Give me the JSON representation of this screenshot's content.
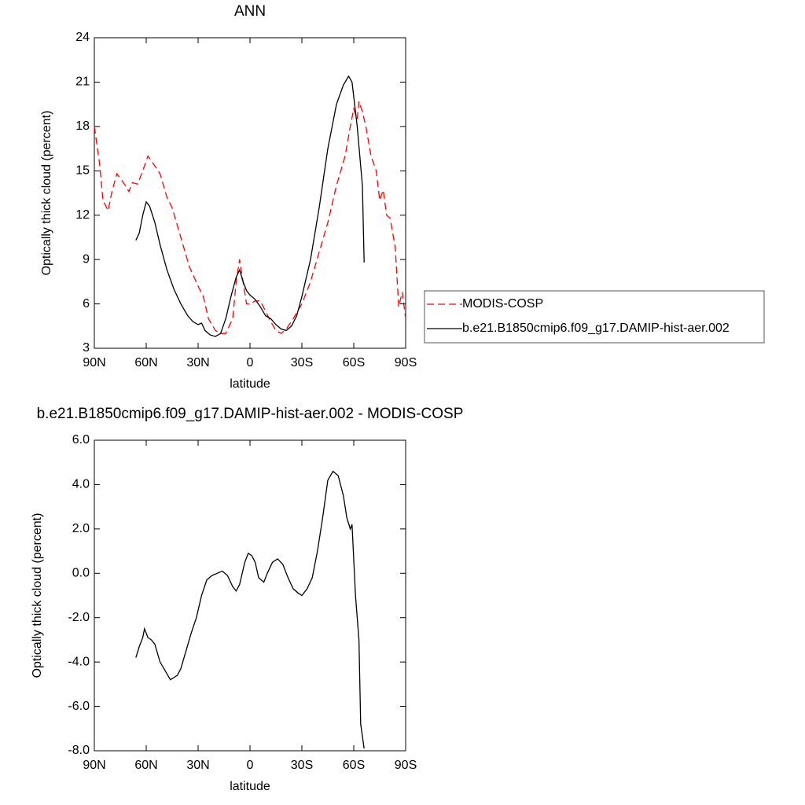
{
  "chart_data": [
    {
      "type": "line",
      "title": "ANN",
      "xlabel": "latitude",
      "ylabel": "Optically thick cloud (percent)",
      "xlim": [
        90,
        -90
      ],
      "ylim": [
        3,
        24
      ],
      "xticks": [
        {
          "value": 90,
          "label": "90N"
        },
        {
          "value": 60,
          "label": "60N"
        },
        {
          "value": 30,
          "label": "30N"
        },
        0,
        {
          "value": -30,
          "label": "30S"
        },
        {
          "value": -60,
          "label": "60S"
        },
        {
          "value": -90,
          "label": "90S"
        }
      ],
      "yticks": [
        3,
        6,
        9,
        12,
        15,
        18,
        21,
        24
      ],
      "legend": "outside-right",
      "series": [
        {
          "name": "MODIS-COSP",
          "color": "#ff0000",
          "line_style": "dashed",
          "x": [
            90,
            87,
            85,
            82,
            80,
            77,
            75,
            72,
            70,
            68,
            65,
            62,
            59,
            56,
            52,
            48,
            45,
            40,
            35,
            30,
            27,
            24,
            20,
            17,
            14,
            10,
            8,
            6,
            4,
            2,
            0,
            -3,
            -6,
            -9,
            -12,
            -15,
            -18,
            -21,
            -25,
            -30,
            -35,
            -40,
            -45,
            -50,
            -55,
            -58,
            -60,
            -62,
            -63,
            -65,
            -67,
            -70,
            -73,
            -75,
            -77,
            -79,
            -81,
            -84,
            -86,
            -88,
            -90
          ],
          "values": [
            18.0,
            15.5,
            13.0,
            12.3,
            13.5,
            14.8,
            14.5,
            14.0,
            13.6,
            14.2,
            14.1,
            15.0,
            16.0,
            15.5,
            14.8,
            13.2,
            12.5,
            10.5,
            8.5,
            7.2,
            6.5,
            5.0,
            4.2,
            4.0,
            4.0,
            5.0,
            7.5,
            9.0,
            7.5,
            6.0,
            6.0,
            6.2,
            6.2,
            5.5,
            4.8,
            4.2,
            4.0,
            4.3,
            5.0,
            6.0,
            7.5,
            9.5,
            11.5,
            14.0,
            16.0,
            18.0,
            19.2,
            18.5,
            19.7,
            19.0,
            18.0,
            16.0,
            15.0,
            13.0,
            13.7,
            12.0,
            11.8,
            9.8,
            5.8,
            6.8,
            5.0
          ]
        },
        {
          "name": "b.e21.B1850cmip6.f09_g17.DAMIP-hist-aer.002",
          "color": "#000000",
          "line_style": "solid",
          "x": [
            66,
            64,
            62,
            60,
            58,
            55,
            52,
            48,
            44,
            40,
            36,
            33,
            30,
            28,
            26,
            23,
            20,
            17,
            14,
            11,
            8,
            6,
            4,
            2,
            0,
            -3,
            -6,
            -9,
            -12,
            -15,
            -18,
            -21,
            -24,
            -27,
            -30,
            -35,
            -40,
            -45,
            -50,
            -54,
            -57,
            -59,
            -62,
            -65,
            -66
          ],
          "values": [
            10.3,
            10.8,
            12.0,
            12.9,
            12.6,
            11.5,
            10.0,
            8.3,
            7.0,
            6.0,
            5.2,
            4.8,
            4.6,
            4.7,
            4.2,
            3.9,
            3.8,
            4.0,
            5.0,
            6.5,
            7.8,
            8.3,
            7.5,
            6.9,
            6.6,
            6.3,
            5.8,
            5.2,
            5.0,
            4.6,
            4.3,
            4.2,
            4.5,
            5.2,
            6.5,
            9.0,
            12.5,
            16.5,
            19.5,
            20.8,
            21.4,
            21.0,
            18.0,
            14.0,
            8.8
          ]
        }
      ]
    },
    {
      "type": "line",
      "title": "b.e21.B1850cmip6.f09_g17.DAMIP-hist-aer.002 - MODIS-COSP",
      "xlabel": "latitude",
      "ylabel": "Optically thick cloud (percent)",
      "xlim": [
        90,
        -90
      ],
      "ylim": [
        -8,
        6
      ],
      "xticks": [
        {
          "value": 90,
          "label": "90N"
        },
        {
          "value": 60,
          "label": "60N"
        },
        {
          "value": 30,
          "label": "30N"
        },
        0,
        {
          "value": -30,
          "label": "30S"
        },
        {
          "value": -60,
          "label": "60S"
        },
        {
          "value": -90,
          "label": "90S"
        }
      ],
      "yticks": [
        {
          "value": -8,
          "label": "-8.0"
        },
        {
          "value": -6,
          "label": "-6.0"
        },
        {
          "value": -4,
          "label": "-4.0"
        },
        {
          "value": -2,
          "label": "-2.0"
        },
        {
          "value": 0,
          "label": "0.0"
        },
        {
          "value": 2,
          "label": "2.0"
        },
        {
          "value": 4,
          "label": "4.0"
        },
        {
          "value": 6,
          "label": "6.0"
        }
      ],
      "series": [
        {
          "color": "#000000",
          "line_style": "solid",
          "x": [
            66,
            64,
            62,
            61,
            59,
            57,
            55,
            52,
            49,
            46,
            44,
            42,
            40,
            37,
            34,
            31,
            28,
            25,
            22,
            19,
            16,
            13,
            10,
            8,
            6,
            3,
            1,
            -1,
            -3,
            -5,
            -8,
            -10,
            -13,
            -16,
            -19,
            -22,
            -25,
            -28,
            -30,
            -33,
            -36,
            -39,
            -42,
            -45,
            -48,
            -51,
            -54,
            -56,
            -58,
            -59,
            -61,
            -63,
            -64,
            -66
          ],
          "values": [
            -3.8,
            -3.3,
            -2.9,
            -2.5,
            -2.9,
            -3.0,
            -3.2,
            -4.0,
            -4.4,
            -4.8,
            -4.7,
            -4.6,
            -4.3,
            -3.5,
            -2.7,
            -2.0,
            -1.0,
            -0.3,
            -0.1,
            0.0,
            0.1,
            -0.1,
            -0.6,
            -0.8,
            -0.5,
            0.5,
            0.9,
            0.8,
            0.5,
            -0.2,
            -0.4,
            0.0,
            0.5,
            0.65,
            0.4,
            -0.2,
            -0.7,
            -0.9,
            -1.0,
            -0.7,
            -0.2,
            1.0,
            2.5,
            4.2,
            4.6,
            4.4,
            3.5,
            2.5,
            2.0,
            2.2,
            -1.0,
            -3.0,
            -6.8,
            -7.9
          ]
        }
      ]
    }
  ]
}
